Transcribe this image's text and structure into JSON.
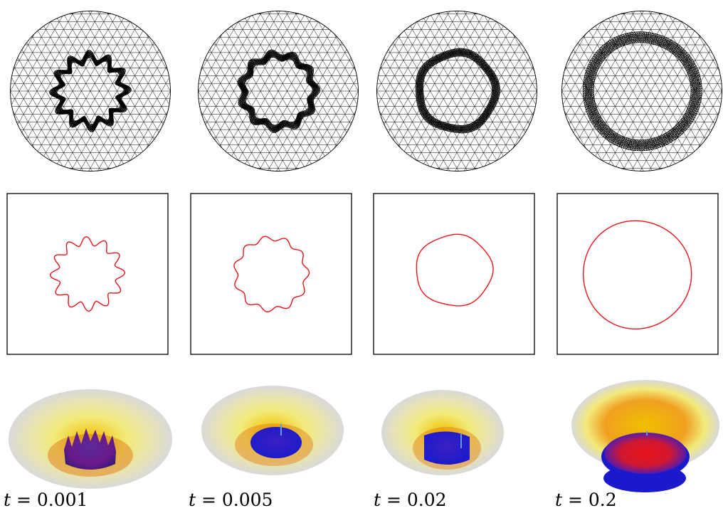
{
  "figure": {
    "columns": [
      {
        "time_var": "t",
        "time_rest": " = 0.001",
        "wobble_amplitude": 0.13,
        "wobble_lobes": 12,
        "radius": 0.25
      },
      {
        "time_var": "t",
        "time_rest": " = 0.005",
        "wobble_amplitude": 0.07,
        "wobble_lobes": 11,
        "radius": 0.27
      },
      {
        "time_var": "t",
        "time_rest": " = 0.02",
        "wobble_amplitude": 0.025,
        "wobble_lobes": 5,
        "radius": 0.29
      },
      {
        "time_var": "t",
        "time_rest": " = 0.2",
        "wobble_amplitude": 0.01,
        "wobble_lobes": 3,
        "radius": 0.41
      }
    ],
    "colors": {
      "mesh_line": "#000000",
      "interface_curve": "#e8141c",
      "panel_border": "#000000",
      "surface_outer": "#d9d9d9",
      "surface_mid": "#f2ea7a",
      "surface_inner": "#f0c000",
      "surface_low": "#1a1acc",
      "surface_peak": "#e8141c"
    }
  }
}
